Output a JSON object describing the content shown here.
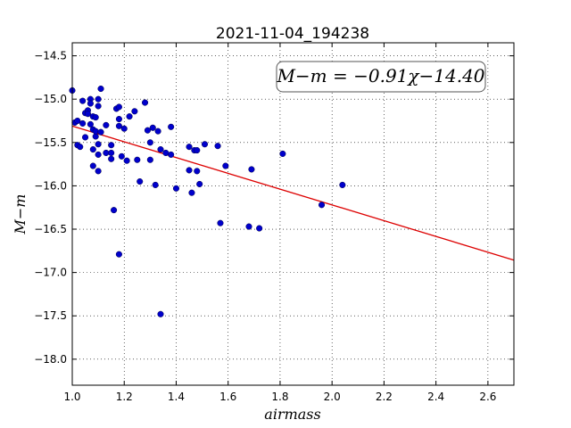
{
  "chart_data": {
    "type": "scatter",
    "title": "2021-11-04_194238",
    "xlabel": "airmass",
    "ylabel": "M−m",
    "xlim": [
      1.0,
      2.7
    ],
    "ylim": [
      -18.3,
      -14.35
    ],
    "y_inverted": true,
    "grid": true,
    "xticks": [
      1.0,
      1.2,
      1.4,
      1.6,
      1.8,
      2.0,
      2.2,
      2.4,
      2.6
    ],
    "xtick_labels": [
      "1.0",
      "1.2",
      "1.4",
      "1.6",
      "1.8",
      "2.0",
      "2.2",
      "2.4",
      "2.6"
    ],
    "yticks": [
      -14.5,
      -15.0,
      -15.5,
      -16.0,
      -16.5,
      -17.0,
      -17.5,
      -18.0
    ],
    "ytick_labels": [
      "−14.5",
      "−15.0",
      "−15.5",
      "−16.0",
      "−16.5",
      "−17.0",
      "−17.5",
      "−18.0"
    ],
    "point_color": "#0000cc",
    "fit_color": "#dd0000",
    "annotation": "M−m = −0.91χ−14.40",
    "fit": {
      "slope": -0.91,
      "intercept": -14.4,
      "x_range": [
        1.0,
        2.7
      ]
    },
    "points": [
      [
        1.0,
        -14.9
      ],
      [
        1.01,
        -15.27
      ],
      [
        1.02,
        -15.25
      ],
      [
        1.02,
        -15.53
      ],
      [
        1.03,
        -15.55
      ],
      [
        1.04,
        -15.28
      ],
      [
        1.04,
        -15.02
      ],
      [
        1.05,
        -15.16
      ],
      [
        1.05,
        -15.44
      ],
      [
        1.06,
        -15.13
      ],
      [
        1.06,
        -15.17
      ],
      [
        1.07,
        -15.0
      ],
      [
        1.07,
        -15.05
      ],
      [
        1.07,
        -15.29
      ],
      [
        1.08,
        -15.2
      ],
      [
        1.08,
        -15.35
      ],
      [
        1.08,
        -15.58
      ],
      [
        1.08,
        -15.77
      ],
      [
        1.09,
        -15.21
      ],
      [
        1.09,
        -15.43
      ],
      [
        1.09,
        -15.37
      ],
      [
        1.1,
        -15.0
      ],
      [
        1.1,
        -15.08
      ],
      [
        1.1,
        -15.52
      ],
      [
        1.1,
        -15.64
      ],
      [
        1.1,
        -15.83
      ],
      [
        1.11,
        -14.88
      ],
      [
        1.11,
        -15.38
      ],
      [
        1.13,
        -15.3
      ],
      [
        1.13,
        -15.62
      ],
      [
        1.15,
        -15.69
      ],
      [
        1.15,
        -15.62
      ],
      [
        1.15,
        -15.53
      ],
      [
        1.16,
        -16.28
      ],
      [
        1.17,
        -15.11
      ],
      [
        1.18,
        -15.09
      ],
      [
        1.18,
        -15.23
      ],
      [
        1.18,
        -15.31
      ],
      [
        1.18,
        -16.79
      ],
      [
        1.19,
        -15.66
      ],
      [
        1.2,
        -15.34
      ],
      [
        1.21,
        -15.71
      ],
      [
        1.22,
        -15.2
      ],
      [
        1.24,
        -15.14
      ],
      [
        1.25,
        -15.7
      ],
      [
        1.26,
        -15.95
      ],
      [
        1.28,
        -15.04
      ],
      [
        1.29,
        -15.36
      ],
      [
        1.3,
        -15.7
      ],
      [
        1.3,
        -15.5
      ],
      [
        1.31,
        -15.33
      ],
      [
        1.32,
        -15.99
      ],
      [
        1.33,
        -15.37
      ],
      [
        1.34,
        -15.58
      ],
      [
        1.34,
        -17.48
      ],
      [
        1.36,
        -15.62
      ],
      [
        1.38,
        -15.64
      ],
      [
        1.38,
        -15.32
      ],
      [
        1.4,
        -16.03
      ],
      [
        1.45,
        -15.55
      ],
      [
        1.45,
        -15.82
      ],
      [
        1.46,
        -16.08
      ],
      [
        1.47,
        -15.59
      ],
      [
        1.48,
        -15.59
      ],
      [
        1.48,
        -15.83
      ],
      [
        1.49,
        -15.98
      ],
      [
        1.51,
        -15.52
      ],
      [
        1.56,
        -15.54
      ],
      [
        1.57,
        -16.43
      ],
      [
        1.59,
        -15.77
      ],
      [
        1.68,
        -16.47
      ],
      [
        1.69,
        -15.81
      ],
      [
        1.72,
        -16.49
      ],
      [
        1.81,
        -15.63
      ],
      [
        1.96,
        -16.22
      ],
      [
        2.04,
        -15.99
      ]
    ]
  }
}
